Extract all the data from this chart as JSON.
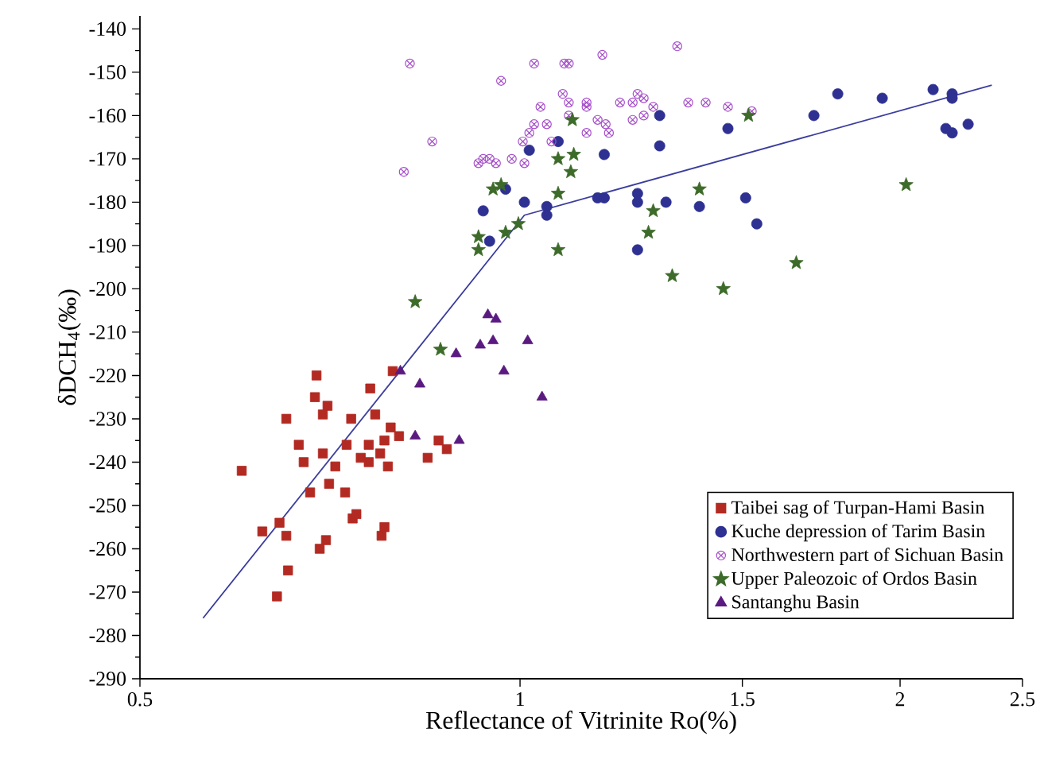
{
  "chart_data": {
    "type": "scatter",
    "xlabel": "Reflectance of Vitrinite Ro(%)",
    "ylabel": "δDCH$_{4}$(‰)",
    "log": "x",
    "xlim": [
      0.5,
      2.5
    ],
    "ylim": [
      -290,
      -137
    ],
    "xticks": [
      0.5,
      1,
      1.5,
      2,
      2.5
    ],
    "yticks": [
      -140,
      -150,
      -160,
      -170,
      -180,
      -190,
      -200,
      -210,
      -220,
      -230,
      -240,
      -250,
      -260,
      -270,
      -280,
      -290
    ],
    "legend": "bottom right",
    "grid": false,
    "series": [
      {
        "name": "Taibei sag of Turpan-Hami Basin",
        "marker": "square",
        "color": "#b22a22",
        "x": [
          0.602,
          0.69,
          0.653,
          0.688,
          0.704,
          0.698,
          0.668,
          0.674,
          0.698,
          0.714,
          0.706,
          0.682,
          0.727,
          0.735,
          0.729,
          0.761,
          0.768,
          0.793,
          0.79,
          0.802,
          0.759,
          0.781,
          0.748,
          0.759,
          0.775,
          0.786,
          0.625,
          0.645,
          0.653,
          0.655,
          0.642,
          0.694,
          0.702,
          0.737,
          0.742,
          0.777,
          0.781,
          0.845,
          0.862,
          0.875
        ],
        "values": [
          -242,
          -220,
          -230,
          -225,
          -227,
          -229,
          -236,
          -240,
          -238,
          -241,
          -245,
          -247,
          -247,
          -230,
          -236,
          -223,
          -229,
          -219,
          -232,
          -234,
          -236,
          -235,
          -239,
          -240,
          -238,
          -241,
          -256,
          -254,
          -257,
          -265,
          -271,
          -260,
          -258,
          -253,
          -252,
          -257,
          -255,
          -239,
          -235,
          -237
        ]
      },
      {
        "name": "Kuche depression of Tarim Basin",
        "marker": "circle",
        "color": "#2e3192",
        "x": [
          0.935,
          0.946,
          0.974,
          1.008,
          1.017,
          1.05,
          1.05,
          1.072,
          1.152,
          1.166,
          1.166,
          1.239,
          1.239,
          1.239,
          1.29,
          1.29,
          1.305,
          1.387,
          1.461,
          1.509,
          1.54,
          1.709,
          1.785,
          1.936,
          2.124,
          2.199,
          2.199,
          2.174,
          2.199,
          2.264
        ],
        "values": [
          -182,
          -189,
          -177,
          -180,
          -168,
          -181,
          -183,
          -166,
          -179,
          -179,
          -169,
          -178,
          -180,
          -191,
          -160,
          -167,
          -180,
          -181,
          -163,
          -179,
          -185,
          -160,
          -155,
          -156,
          -154,
          -155,
          -156,
          -163,
          -164,
          -162
        ]
      },
      {
        "name": "Northwestern part of Sichuan Basin",
        "marker": "cross",
        "color": "#a64fc9",
        "x": [
          0.818,
          0.809,
          0.852,
          0.966,
          1.026,
          1.084,
          1.093,
          1.162,
          1.332,
          0.927,
          0.935,
          0.946,
          0.957,
          0.985,
          1.008,
          1.005,
          1.017,
          1.026,
          1.05,
          1.038,
          1.059,
          1.081,
          1.093,
          1.093,
          1.129,
          1.129,
          1.129,
          1.152,
          1.169,
          1.176,
          1.2,
          1.228,
          1.239,
          1.253,
          1.228,
          1.253,
          1.275,
          1.359,
          1.403,
          1.461,
          1.526
        ],
        "values": [
          -148,
          -173,
          -166,
          -152,
          -148,
          -148,
          -148,
          -146,
          -144,
          -171,
          -170,
          -170,
          -171,
          -170,
          -171,
          -166,
          -164,
          -162,
          -162,
          -158,
          -166,
          -155,
          -157,
          -160,
          -157,
          -158,
          -164,
          -161,
          -162,
          -164,
          -157,
          -157,
          -155,
          -156,
          -161,
          -160,
          -158,
          -157,
          -157,
          -158,
          -159
        ]
      },
      {
        "name": "Upper Paleozoic of Ordos Basin",
        "marker": "star",
        "color": "#3d6b2a",
        "x": [
          0.826,
          0.927,
          0.927,
          0.952,
          0.966,
          0.974,
          0.997,
          1.072,
          1.072,
          1.072,
          1.103,
          1.097,
          1.1,
          1.275,
          1.264,
          1.32,
          1.387,
          1.449,
          1.517,
          1.655,
          2.022,
          0.865
        ],
        "values": [
          -203,
          -188,
          -191,
          -177,
          -176,
          -187,
          -185,
          -191,
          -178,
          -170,
          -169,
          -173,
          -161,
          -182,
          -187,
          -197,
          -177,
          -200,
          -160,
          -194,
          -176,
          -214
        ]
      },
      {
        "name": "Santanghu Basin",
        "marker": "triangle",
        "color": "#5b1a80",
        "x": [
          0.943,
          0.957,
          0.952,
          0.93,
          0.89,
          1.014,
          0.971,
          1.041,
          0.804,
          0.833,
          0.826,
          0.895
        ],
        "values": [
          -206,
          -207,
          -212,
          -213,
          -215,
          -212,
          -219,
          -225,
          -219,
          -222,
          -234,
          -235
        ]
      },
      {
        "type": "line",
        "color": "#3b3d9e",
        "x": [
          0.561,
          1.008,
          2.364
        ],
        "values": [
          -276,
          -183,
          -153
        ]
      }
    ]
  }
}
